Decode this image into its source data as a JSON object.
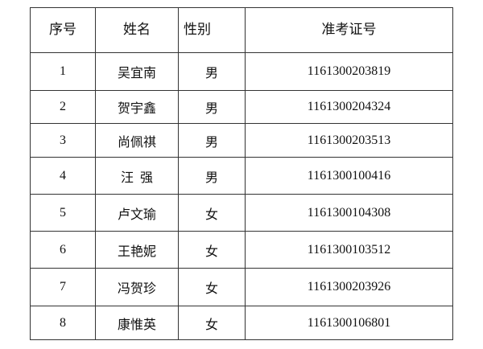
{
  "table": {
    "headers": [
      "序号",
      "姓名",
      "性别",
      "准考证号"
    ],
    "rows": [
      [
        "1",
        "吴宜南",
        "男",
        "1161300203819"
      ],
      [
        "2",
        "贺宇鑫",
        "男",
        "1161300204324"
      ],
      [
        "3",
        "尚佩祺",
        "男",
        "1161300203513"
      ],
      [
        "4",
        "汪  强",
        "男",
        "1161300100416"
      ],
      [
        "5",
        "卢文瑜",
        "女",
        "1161300104308"
      ],
      [
        "6",
        "王艳妮",
        "女",
        "1161300103512"
      ],
      [
        "7",
        "冯贺珍",
        "女",
        "1161300203926"
      ],
      [
        "8",
        "康惟英",
        "女",
        "1161300106801"
      ]
    ]
  }
}
